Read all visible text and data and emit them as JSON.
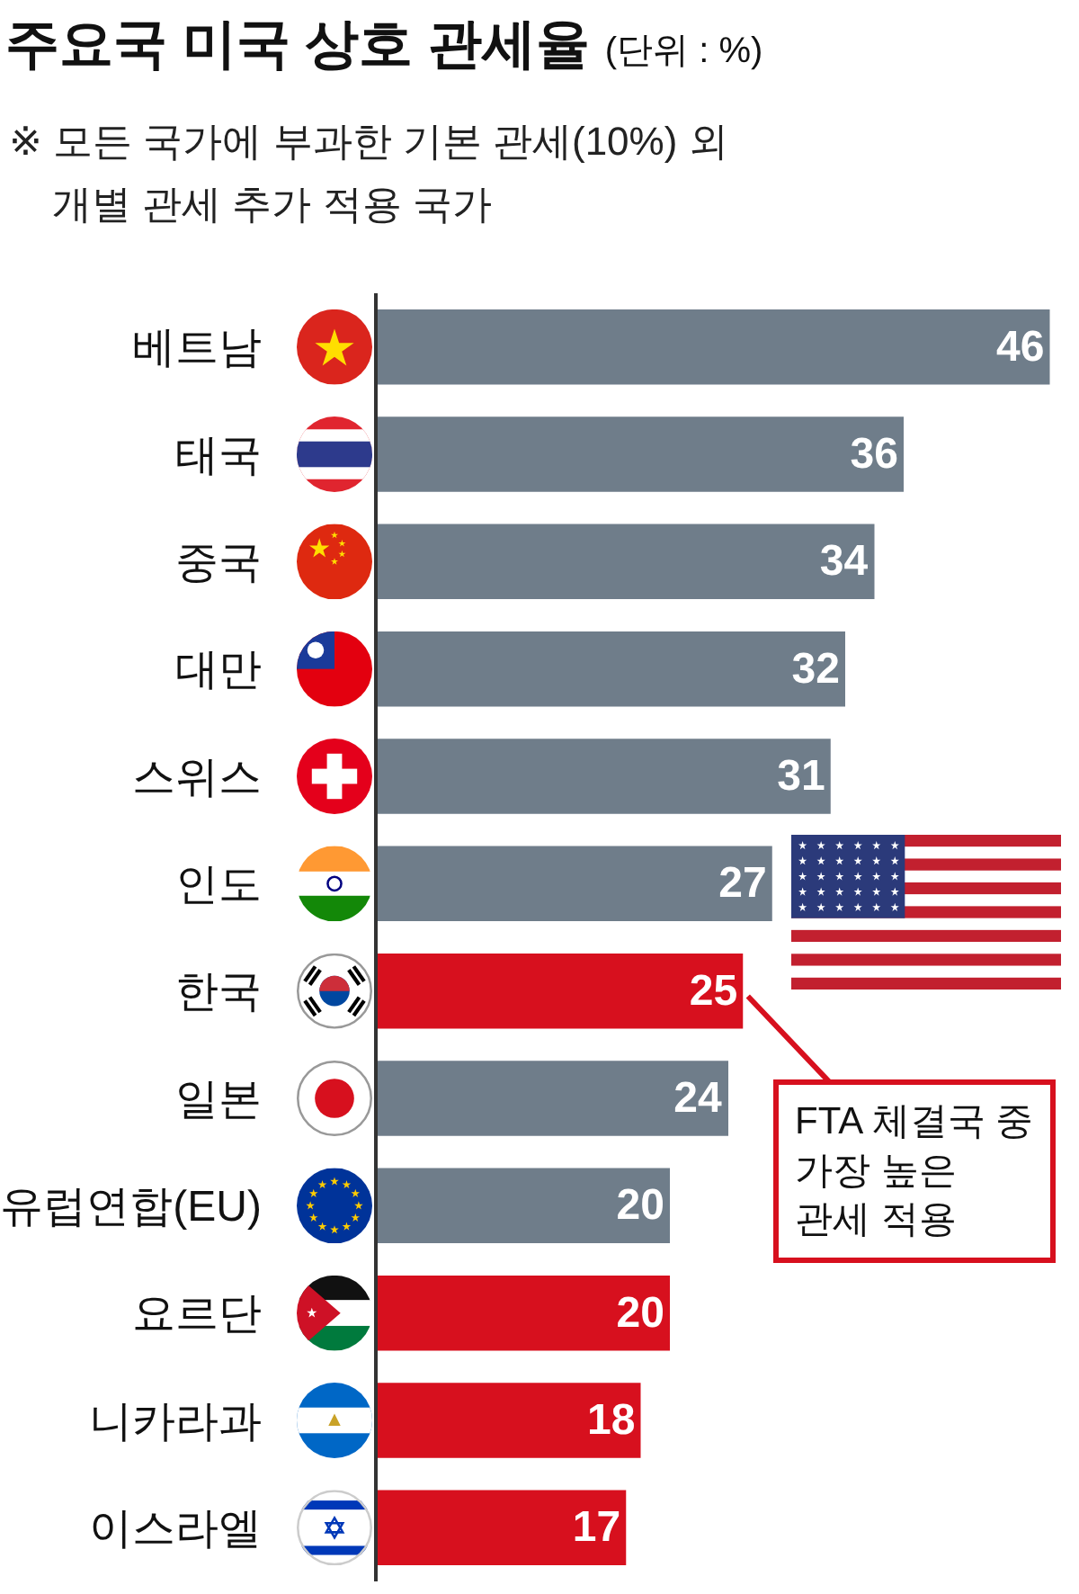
{
  "chart_data": {
    "type": "bar",
    "orientation": "horizontal",
    "title": "주요국 미국 상호 관세율",
    "subtitle": "※ 모든 국가에 부과한 기본 관세(10%) 외\n개별 관세 추가 적용 국가",
    "categories": [
      "베트남",
      "태국",
      "중국",
      "대만",
      "스위스",
      "인도",
      "한국",
      "일본",
      "유럽연합(EU)",
      "요르단",
      "니카라과",
      "이스라엘"
    ],
    "values": [
      46,
      36,
      34,
      32,
      31,
      27,
      25,
      24,
      20,
      20,
      18,
      17
    ],
    "colors": [
      "#6f7d8a",
      "#6f7d8a",
      "#6f7d8a",
      "#6f7d8a",
      "#6f7d8a",
      "#6f7d8a",
      "#d7101e",
      "#6f7d8a",
      "#6f7d8a",
      "#d7101e",
      "#d7101e",
      "#d7101e"
    ],
    "xlim": [
      0,
      48
    ],
    "data_labels": true,
    "tick_labels": "y",
    "annotations": [
      "(단위 : %)",
      {
        "text": "FTA 체결국 중\n가장 높은\n관세 적용",
        "x": 25,
        "y": "한국"
      }
    ]
  }
}
